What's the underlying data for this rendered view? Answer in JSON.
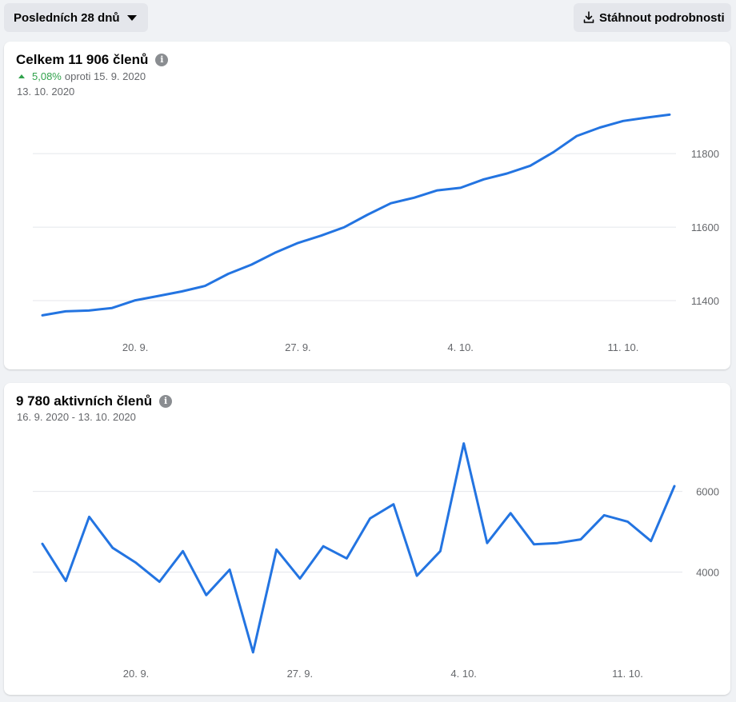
{
  "toolbar": {
    "range_label": "Posledních 28 dnů",
    "download_label": "Stáhnout podrobnosti"
  },
  "colors": {
    "line": "#2374e1",
    "grid": "#e4e6eb",
    "positive": "#31a24c"
  },
  "total_card": {
    "title": "Celkem 11 906 členů",
    "delta_pct": "5,08%",
    "delta_text": "oproti 15. 9. 2020",
    "date": "13. 10. 2020"
  },
  "active_card": {
    "title": "9 780 aktivních členů",
    "date_range": "16. 9. 2020 - 13. 10. 2020"
  },
  "chart_data": [
    {
      "type": "line",
      "x_tick_labels": [
        "20. 9.",
        "27. 9.",
        "4. 10.",
        "11. 10."
      ],
      "y_ticks": [
        11400,
        11600,
        11800
      ],
      "ylim": [
        11300,
        11920
      ],
      "grid": true,
      "series": [
        {
          "values": [
            11360,
            11371,
            11373,
            11380,
            11401,
            11413,
            11425,
            11440,
            11473,
            11498,
            11530,
            11557,
            11577,
            11600,
            11634,
            11665,
            11680,
            11700,
            11707,
            11730,
            11746,
            11767,
            11804,
            11848,
            11871,
            11889,
            11898,
            11906
          ]
        }
      ]
    },
    {
      "type": "line",
      "x_tick_labels": [
        "20. 9.",
        "27. 9.",
        "4. 10.",
        "11. 10."
      ],
      "y_ticks": [
        4000,
        6000
      ],
      "ylim": [
        1850,
        7300
      ],
      "grid": true,
      "series": [
        {
          "values": [
            4700,
            3780,
            5370,
            4600,
            4230,
            3760,
            4520,
            3430,
            4060,
            2010,
            4560,
            3840,
            4640,
            4340,
            5330,
            5680,
            3910,
            4520,
            7190,
            4720,
            5460,
            4690,
            4720,
            4810,
            5410,
            5250,
            4770,
            6130
          ]
        }
      ]
    }
  ]
}
